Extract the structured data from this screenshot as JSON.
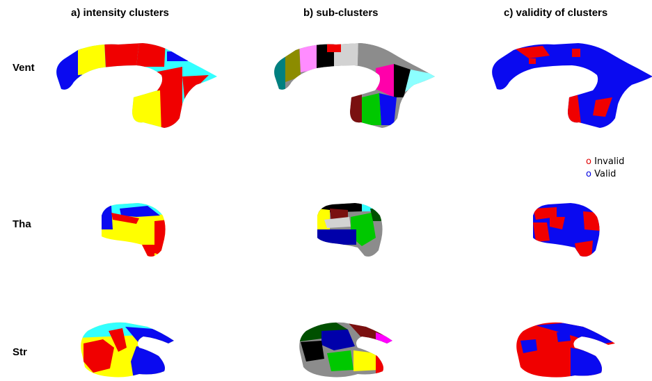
{
  "columns": [
    {
      "title": "a) intensity clusters"
    },
    {
      "title": "b) sub-clusters"
    },
    {
      "title": "c) validity of clusters"
    }
  ],
  "rows": [
    {
      "label": "Vent"
    },
    {
      "label": "Tha"
    },
    {
      "label": "Str"
    }
  ],
  "legend": {
    "marker": "o",
    "items": [
      {
        "label": "Invalid",
        "color": "#e00000"
      },
      {
        "label": "Valid",
        "color": "#0000e0"
      }
    ]
  },
  "colors": {
    "blue": "#0a0af0",
    "red": "#f00000",
    "yellow": "#ffff00",
    "cyan": "#33ffff",
    "black": "#000000",
    "gray": "#8c8c8c",
    "lightgray": "#d2d2d2",
    "green": "#00c800",
    "olive": "#8c8c00",
    "pink": "#ff8cff",
    "magenta": "#ff00aa",
    "teal": "#008080",
    "maroon": "#7a1010",
    "navy": "#0000aa",
    "darkgreen": "#005000",
    "lightcyan": "#8cffff"
  }
}
